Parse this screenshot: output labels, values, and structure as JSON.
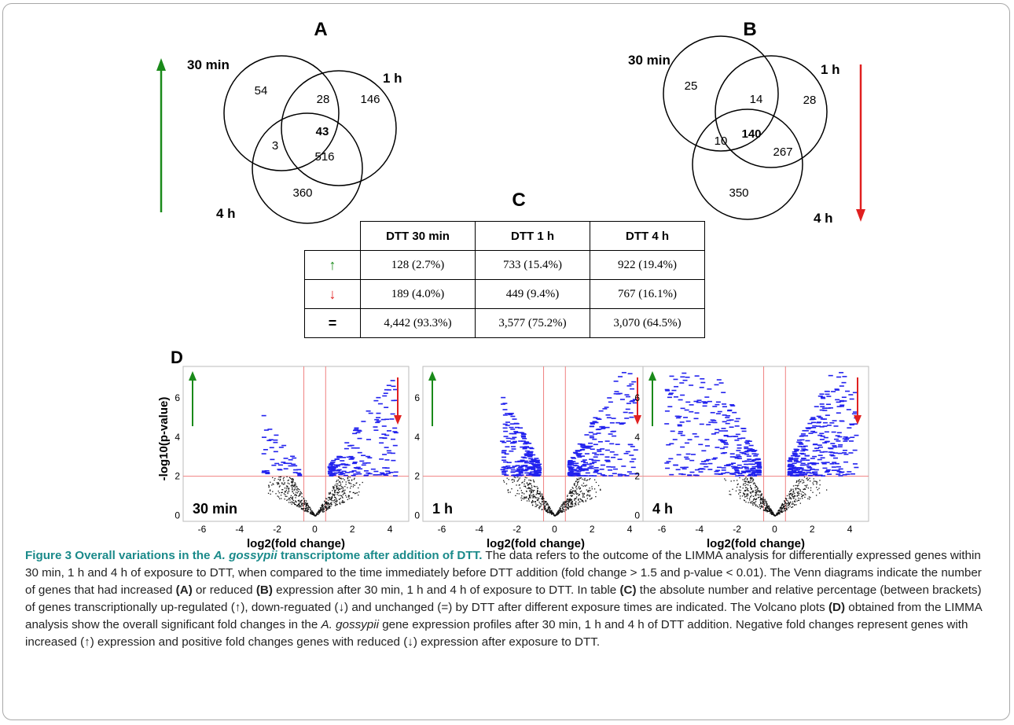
{
  "panels": {
    "A": {
      "letter": "A",
      "labels": {
        "t30": "30 min",
        "t1": "1 h",
        "t4": "4 h"
      },
      "counts": {
        "only30": "54",
        "only1": "146",
        "only4": "360",
        "ab": "28",
        "ac": "3",
        "bc": "516",
        "abc": "43"
      }
    },
    "B": {
      "letter": "B",
      "labels": {
        "t30": "30 min",
        "t1": "1 h",
        "t4": "4 h"
      },
      "counts": {
        "only30": "25",
        "only1": "28",
        "only4": "350",
        "ab": "14",
        "ac": "10",
        "bc": "267",
        "abc": "140"
      }
    },
    "C": {
      "letter": "C",
      "headers": [
        "DTT 30 min",
        "DTT 1 h",
        "DTT 4 h"
      ],
      "rows": [
        {
          "symbol": "↑",
          "color": "#1a8a1a",
          "values": [
            "128 (2.7%)",
            "733 (15.4%)",
            "922 (19.4%)"
          ]
        },
        {
          "symbol": "↓",
          "color": "#e02020",
          "values": [
            "189 (4.0%)",
            "449 (9.4%)",
            "767 (16.1%)"
          ]
        },
        {
          "symbol": "=",
          "color": "#000000",
          "values": [
            "4,442 (93.3%)",
            "3,577 (75.2%)",
            "3,070 (64.5%)"
          ]
        }
      ]
    },
    "D": {
      "letter": "D",
      "ylabel": "-log10(p-value)",
      "xlabel": "log2(fold change)",
      "xticks": [
        "-6",
        "-4",
        "-2",
        "0",
        "2",
        "4"
      ],
      "yticks": [
        "0",
        "2",
        "4",
        "6"
      ],
      "plots": [
        {
          "label": "30 min",
          "density": 0.35
        },
        {
          "label": "1 h",
          "density": 0.75
        },
        {
          "label": "4 h",
          "density": 1.0
        }
      ]
    }
  },
  "colors": {
    "up_arrow": "#1a8a1a",
    "down_arrow": "#e02020",
    "significant": "#2222ee",
    "nonsig": "#111111",
    "threshold": "#f08080"
  },
  "caption": {
    "title_pre": "Figure 3 Overall variations in the ",
    "title_species": "A. gossypii",
    "title_post": " transcriptome after addition of DTT.",
    "s1": " The data refers to the outcome of the LIMMA analysis for differentially expressed genes within 30 min, 1 h and 4 h of exposure to DTT, when compared to the time immediately before DTT addition (fold change > 1.5 and p-value < 0.01). The Venn diagrams indicate the number of genes that had increased ",
    "refA": "(A)",
    "s2": " or reduced ",
    "refB": "(B)",
    "s3": " expression after 30 min, 1 h and 4 h of exposure to DTT. In table ",
    "refC": "(C)",
    "s4": " the absolute number and relative percentage (between brackets) of genes transcriptionally up-regulated (↑), down-reguated (↓) and unchanged (=) by DTT after different exposure times are indicated. The Volcano plots ",
    "refD": "(D)",
    "s5": " obtained from the LIMMA analysis show the overall significant fold changes in the ",
    "species2": "A. gossypii",
    "s6": " gene expression profiles after 30 min, 1 h and 4 h of DTT addition. Negative fold changes represent genes with increased (↑) expression and positive fold changes genes with reduced (↓) expression after exposure to DTT."
  }
}
